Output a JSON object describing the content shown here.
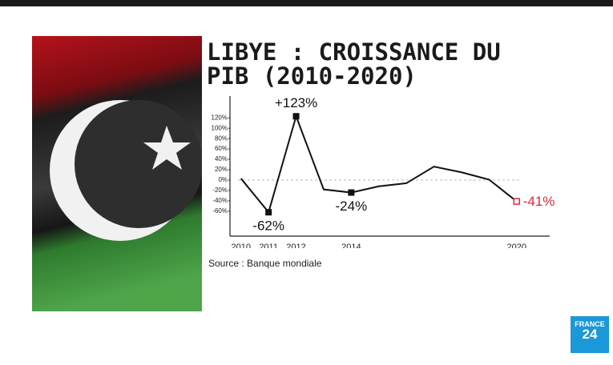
{
  "chart_data": {
    "type": "line",
    "title": "LIBYE : CROISSANCE DU PIB (2010-2020)",
    "source": "Source : Banque mondiale",
    "x": [
      2010,
      2011,
      2012,
      2013,
      2014,
      2015,
      2016,
      2017,
      2018,
      2019,
      2020
    ],
    "values": [
      3,
      -62,
      123,
      -18,
      -24,
      -12,
      -6,
      26,
      15,
      1,
      -41
    ],
    "value_labels": [
      null,
      "-62%",
      "+123%",
      null,
      "-24%",
      null,
      null,
      null,
      null,
      null,
      "-41%"
    ],
    "color": "#111111",
    "last_point_color": "#e0263b",
    "xlim": [
      2009.6,
      2021.2
    ],
    "xticks": [
      2010,
      2011,
      2012,
      2014,
      2020
    ],
    "ylim": [
      -108,
      162
    ],
    "yticks": [
      {
        "value": -60,
        "label": "-60%"
      },
      {
        "value": -40,
        "label": "-40%"
      },
      {
        "value": -20,
        "label": "-20%"
      },
      {
        "value": 0,
        "label": "0%"
      },
      {
        "value": 20,
        "label": "20%"
      },
      {
        "value": 40,
        "label": "40%"
      },
      {
        "value": 60,
        "label": "60%"
      },
      {
        "value": 80,
        "label": "80%"
      },
      {
        "value": 100,
        "label": "100%"
      },
      {
        "value": 120,
        "label": "120%"
      }
    ],
    "zero_line": true
  },
  "logo": {
    "line1": "FRANCE",
    "line2": "24"
  }
}
